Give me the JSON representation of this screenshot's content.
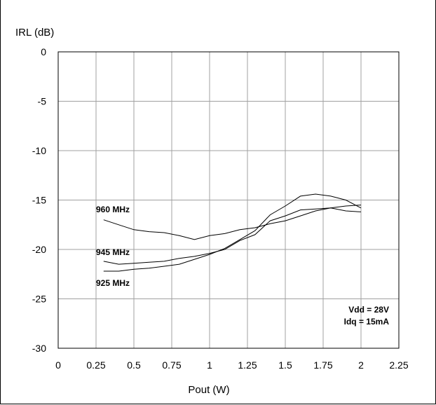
{
  "chart_data": {
    "type": "line",
    "ylabel": "IRL (dB)",
    "xlabel": "Pout (W)",
    "xlim": [
      0,
      2.25
    ],
    "ylim": [
      -30,
      0
    ],
    "x_ticks": [
      "0",
      "0.25",
      "0.5",
      "0.75",
      "1",
      "1.25",
      "1.5",
      "1.75",
      "2",
      "2.25"
    ],
    "y_ticks": [
      "0",
      "-5",
      "-10",
      "-15",
      "-20",
      "-25",
      "-30"
    ],
    "grid": true,
    "series": [
      {
        "name": "960 MHz",
        "x": [
          0.3,
          0.4,
          0.5,
          0.6,
          0.7,
          0.8,
          0.9,
          1.0,
          1.1,
          1.2,
          1.3,
          1.4,
          1.5,
          1.6,
          1.7,
          1.8,
          1.9,
          2.0
        ],
        "y": [
          -17.0,
          -17.5,
          -18.0,
          -18.2,
          -18.3,
          -18.6,
          -19.0,
          -18.6,
          -18.4,
          -18.0,
          -17.8,
          -17.4,
          -17.1,
          -16.6,
          -16.1,
          -15.8,
          -15.6,
          -15.5
        ]
      },
      {
        "name": "945 MHz",
        "x": [
          0.3,
          0.4,
          0.5,
          0.6,
          0.7,
          0.8,
          0.9,
          1.0,
          1.1,
          1.2,
          1.3,
          1.4,
          1.5,
          1.6,
          1.7,
          1.8,
          1.9,
          2.0
        ],
        "y": [
          -21.2,
          -21.5,
          -21.4,
          -21.3,
          -21.2,
          -20.9,
          -20.7,
          -20.4,
          -20.0,
          -19.1,
          -18.5,
          -17.1,
          -16.6,
          -16.0,
          -15.9,
          -15.8,
          -16.1,
          -16.2
        ]
      },
      {
        "name": "925 MHz",
        "x": [
          0.3,
          0.4,
          0.5,
          0.6,
          0.7,
          0.8,
          0.9,
          1.0,
          1.1,
          1.2,
          1.3,
          1.4,
          1.5,
          1.6,
          1.7,
          1.8,
          1.9,
          2.0
        ],
        "y": [
          -22.2,
          -22.2,
          -22.0,
          -21.9,
          -21.7,
          -21.5,
          -21.0,
          -20.5,
          -19.9,
          -19.0,
          -18.1,
          -16.5,
          -15.6,
          -14.6,
          -14.4,
          -14.6,
          -15.0,
          -15.8
        ]
      }
    ],
    "annotations": {
      "label_960": "960 MHz",
      "label_945": "945 MHz",
      "label_925": "925 MHz",
      "cond_vdd": "Vdd = 28V",
      "cond_idq": "Idq = 15mA"
    }
  }
}
